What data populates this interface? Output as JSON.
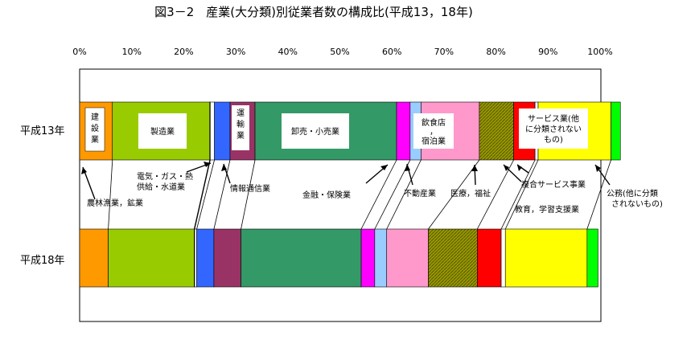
{
  "chart_data": {
    "type": "bar",
    "orientation": "horizontal",
    "stacked": "percent",
    "title": "図3－2　産業(大分類)別従業者数の構成比(平成13，18年)",
    "xlim": [
      0,
      100
    ],
    "xticks": [
      "0%",
      "10%",
      "20%",
      "30%",
      "40%",
      "50%",
      "60%",
      "70%",
      "80%",
      "90%",
      "100%"
    ],
    "grid": false,
    "categories": [
      "平成13年",
      "平成18年"
    ],
    "series": [
      {
        "name": "農林漁業，鉱業",
        "color": "#FF9900",
        "values": [
          6.3,
          5.5
        ]
      },
      {
        "name": "建設業",
        "color": "#99CC00",
        "values": [
          18.7,
          16.5
        ]
      },
      {
        "name": "製造業",
        "color": "#99CC00",
        "values": [
          0.1,
          0.1
        ]
      },
      {
        "name": "電気・ガス・熱供給・水道業",
        "color": "#FFFFFF",
        "values": [
          0.8,
          0.4
        ]
      },
      {
        "name": "情報通信業",
        "color": "#3366FF",
        "values": [
          3.0,
          3.3
        ]
      },
      {
        "name": "運輸業",
        "color": "#993366",
        "values": [
          4.8,
          5.2
        ]
      },
      {
        "name": "卸売・小売業",
        "color": "#339966",
        "values": [
          27.2,
          23.1
        ]
      },
      {
        "name": "金融・保険業",
        "color": "#FF00FF",
        "values": [
          2.6,
          2.6
        ]
      },
      {
        "name": "不動産業",
        "color": "#99CCFF",
        "values": [
          2.1,
          2.3
        ]
      },
      {
        "name": "飲食店，宿泊業",
        "color": "#FF99CC",
        "values": [
          11.2,
          8.0
        ]
      },
      {
        "name": "医療，福祉",
        "color": "#999900",
        "values": [
          6.6,
          9.4
        ]
      },
      {
        "name": "教育，学習支援業",
        "color": "#FF0000",
        "values": [
          4.1,
          4.6
        ]
      },
      {
        "name": "複合サービス事業",
        "color": "#FFFFFF",
        "values": [
          0.6,
          0.8
        ]
      },
      {
        "name": "サービス業(他に分類されないもの)",
        "color": "#FFFF00",
        "values": [
          14.0,
          15.7
        ]
      },
      {
        "name": "公務(他に分類されないもの)",
        "color": "#00FF00",
        "values": [
          1.8,
          2.1
        ]
      }
    ]
  },
  "labels": {
    "row1": "平成13年",
    "row2": "平成18年",
    "inside": {
      "kensetsu": "建設業",
      "seizo": "製造業",
      "unyu": "運輸業",
      "oroshi": "卸売・小売業",
      "inshoku_1": "飲食店",
      "inshoku_2": "，",
      "inshoku_3": "宿泊業",
      "service_1": "サービス業(他",
      "service_2": "に分類されない",
      "service_3": "もの)"
    },
    "annotations": {
      "denki_1": "電気・ガス・熱",
      "denki_2": "供給・水道業",
      "norin": "農林漁業，鉱業",
      "joho": "情報通信業",
      "kinyu": "金融・保険業",
      "fudosan": "不動産業",
      "iryo": "医療，福祉",
      "fukugo": "複合サービス事業",
      "kyoiku": "教育，学習支援業",
      "komu_1": "公務(他に分類",
      "komu_2": "されないもの)"
    }
  }
}
